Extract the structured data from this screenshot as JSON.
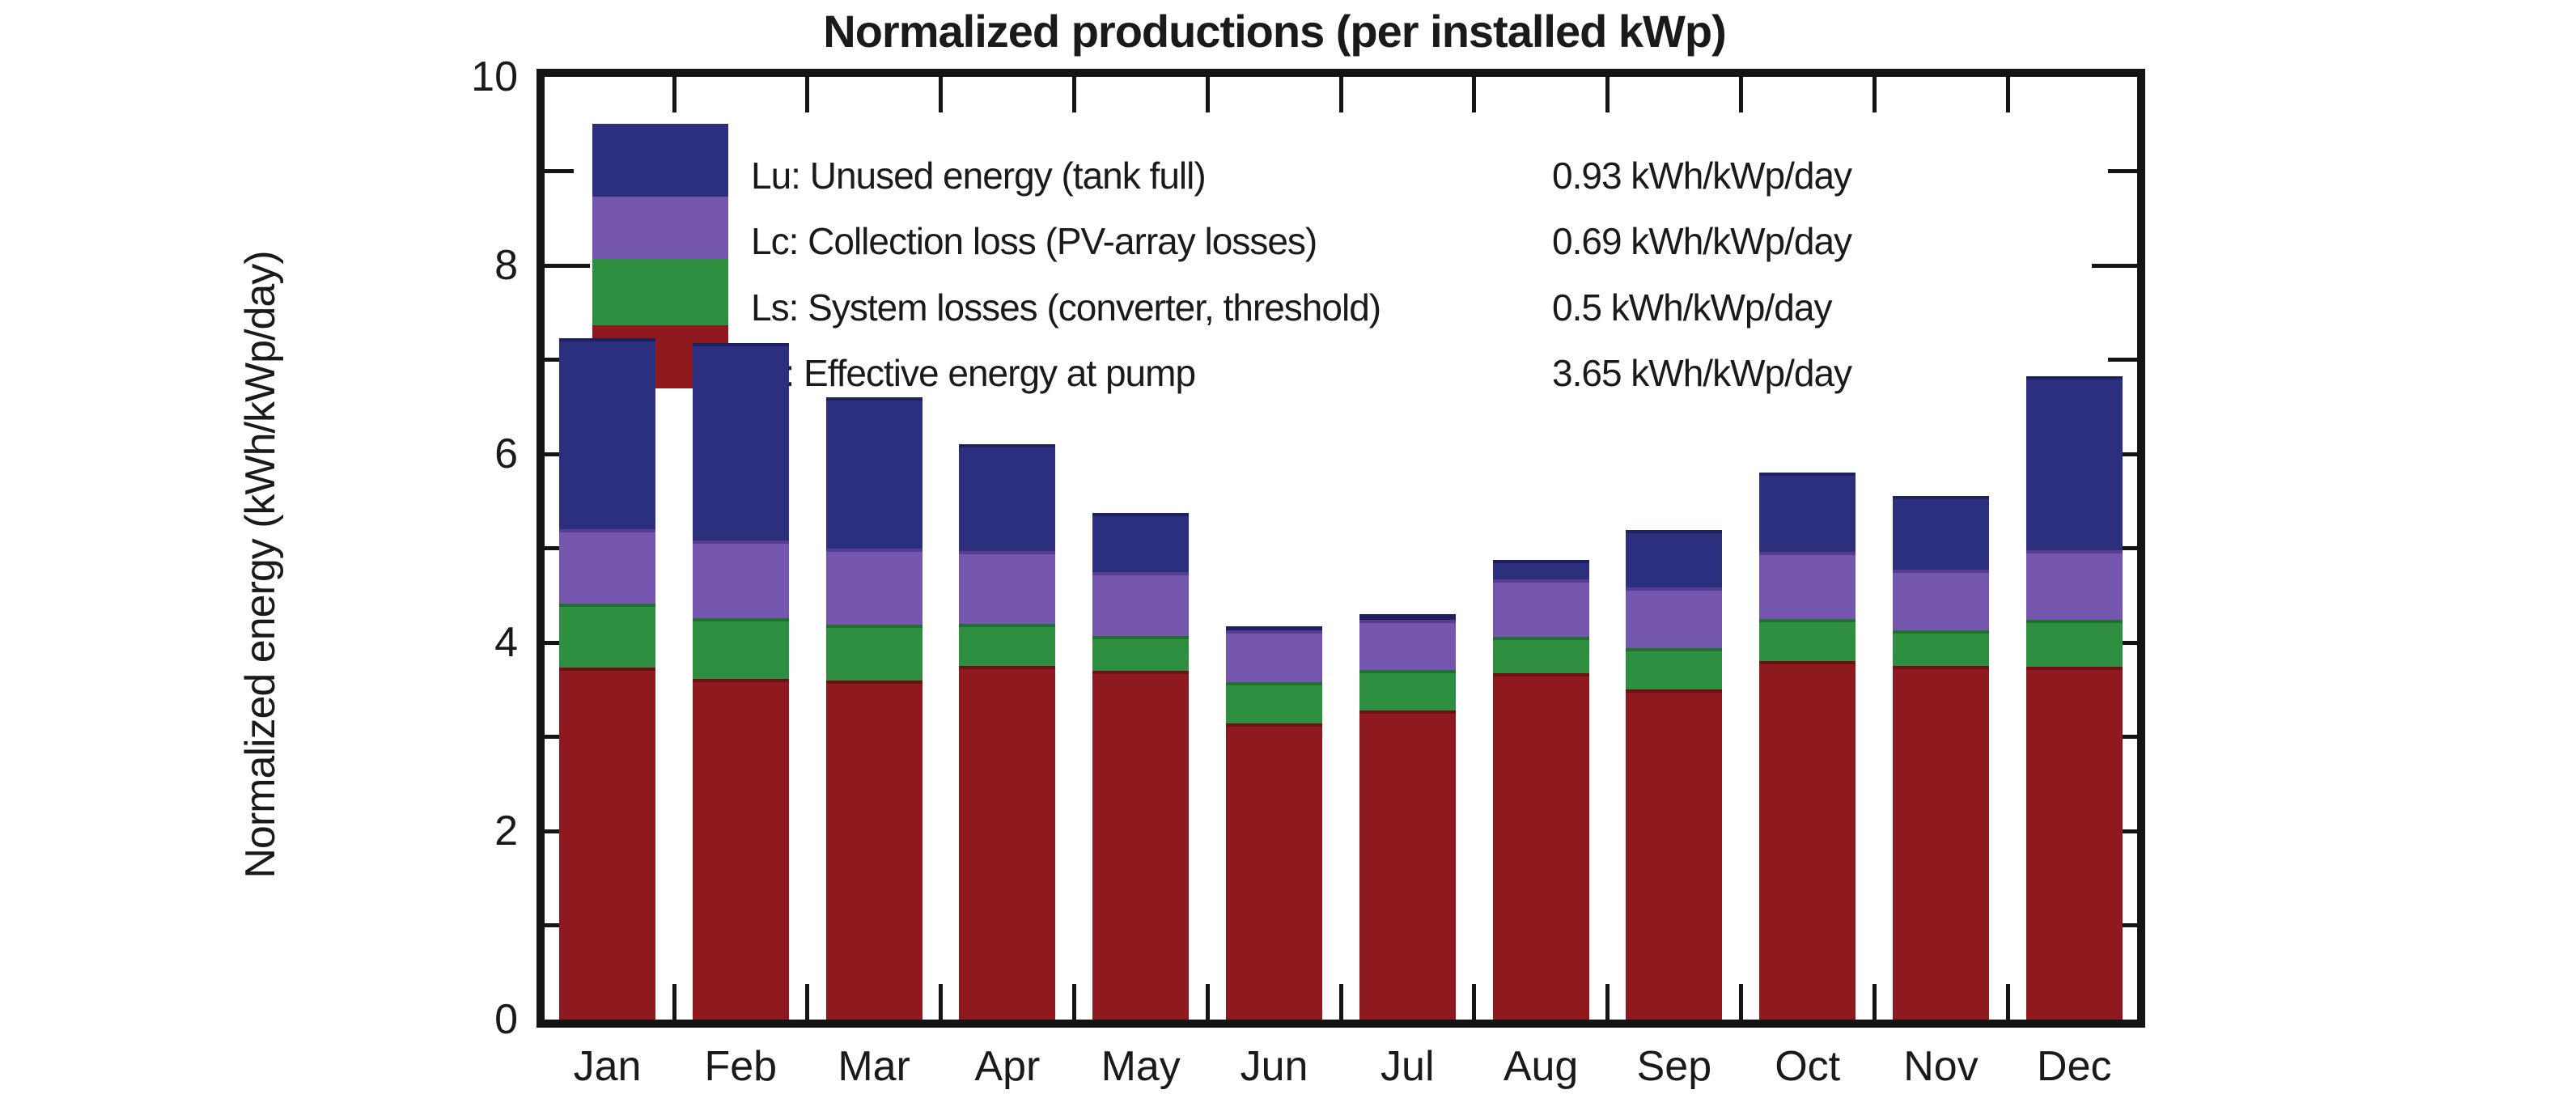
{
  "title": "Normalized productions (per installed kWp)",
  "y_axis": {
    "label": "Normalized energy (kWh/kWp/day)",
    "major_ticks": [
      0,
      2,
      4,
      6,
      8,
      10
    ],
    "minor_ticks": [
      1,
      3,
      5,
      7,
      9
    ],
    "range": [
      0,
      10
    ]
  },
  "legend": {
    "rows": [
      {
        "label": "Lu: Unused energy (tank full)",
        "value": "0.93 kWh/kWp/day",
        "color": "#2b2f7e"
      },
      {
        "label": "Lc: Collection loss (PV-array losses)",
        "value": "0.69 kWh/kWp/day",
        "color": "#7456af"
      },
      {
        "label": "Ls: System losses (converter, threshold)",
        "value": "0.5 kWh/kWp/day",
        "color": "#2f8f40"
      },
      {
        "label": "Vf: Effective energy at pump",
        "value": "3.65 kWh/kWp/day",
        "color": "#8e1a20"
      }
    ]
  },
  "chart_data": {
    "type": "bar",
    "stacked": true,
    "title": "Normalized productions (per installed kWp)",
    "xlabel": "",
    "ylabel": "Normalized energy (kWh/kWp/day)",
    "ylim": [
      0,
      10
    ],
    "grid": false,
    "legend_position": "inside-top-left",
    "categories": [
      "Jan",
      "Feb",
      "Mar",
      "Apr",
      "May",
      "Jun",
      "Jul",
      "Aug",
      "Sep",
      "Oct",
      "Nov",
      "Dec"
    ],
    "series": [
      {
        "name": "Vf: Effective energy at pump",
        "unit": "kWh/kWp/day",
        "annual_mean": 3.65,
        "color": "#8e1a20",
        "values": [
          3.73,
          3.61,
          3.6,
          3.75,
          3.7,
          3.14,
          3.28,
          3.67,
          3.5,
          3.8,
          3.75,
          3.74
        ]
      },
      {
        "name": "Ls: System losses (converter, threshold)",
        "unit": "kWh/kWp/day",
        "annual_mean": 0.5,
        "color": "#2f8f40",
        "values": [
          0.68,
          0.65,
          0.59,
          0.45,
          0.37,
          0.44,
          0.43,
          0.39,
          0.44,
          0.45,
          0.38,
          0.5
        ]
      },
      {
        "name": "Lc: Collection loss (PV-array losses)",
        "unit": "kWh/kWp/day",
        "annual_mean": 0.69,
        "color": "#7456af",
        "values": [
          0.79,
          0.82,
          0.81,
          0.77,
          0.68,
          0.55,
          0.53,
          0.61,
          0.64,
          0.71,
          0.64,
          0.74
        ]
      },
      {
        "name": "Lu: Unused energy (tank full)",
        "unit": "kWh/kWp/day",
        "annual_mean": 0.93,
        "color": "#2b2f7e",
        "values": [
          2.03,
          2.1,
          1.6,
          1.13,
          0.62,
          0.04,
          0.06,
          0.21,
          0.61,
          0.84,
          0.78,
          1.84
        ]
      }
    ]
  }
}
